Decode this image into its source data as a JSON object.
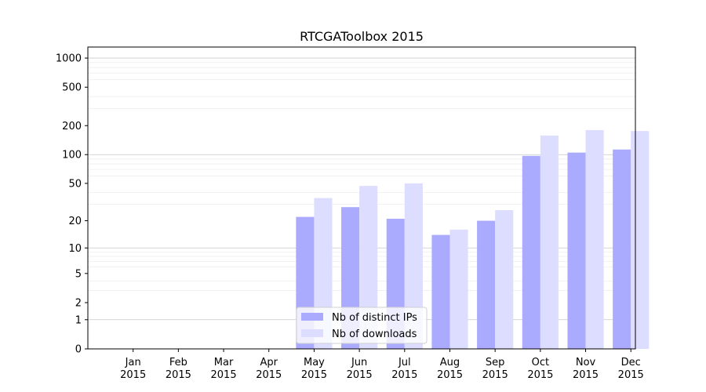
{
  "chart_data": {
    "type": "bar",
    "title": "RTCGAToolbox 2015",
    "xlabel": "",
    "ylabel": "",
    "y_scale": "log(1+y)",
    "ylim": [
      0,
      1300
    ],
    "y_ticks": [
      0,
      1,
      2,
      5,
      10,
      20,
      50,
      100,
      200,
      500,
      1000
    ],
    "y_tick_labels": [
      "0",
      "1",
      "2",
      "5",
      "10",
      "20",
      "50",
      "100",
      "200",
      "500",
      "1000"
    ],
    "categories": [
      [
        "Jan",
        "2015"
      ],
      [
        "Feb",
        "2015"
      ],
      [
        "Mar",
        "2015"
      ],
      [
        "Apr",
        "2015"
      ],
      [
        "May",
        "2015"
      ],
      [
        "Jun",
        "2015"
      ],
      [
        "Jul",
        "2015"
      ],
      [
        "Aug",
        "2015"
      ],
      [
        "Sep",
        "2015"
      ],
      [
        "Oct",
        "2015"
      ],
      [
        "Nov",
        "2015"
      ],
      [
        "Dec",
        "2015"
      ]
    ],
    "series": [
      {
        "name": "Nb of distinct IPs",
        "color": "#aaaaff",
        "values": [
          0,
          0,
          0,
          0,
          22,
          28,
          21,
          14,
          20,
          97,
          105,
          113
        ]
      },
      {
        "name": "Nb of downloads",
        "color": "#ddddff",
        "values": [
          0,
          0,
          0,
          0,
          35,
          47,
          50,
          16,
          26,
          158,
          180,
          176
        ]
      }
    ],
    "grid": true,
    "legend_position": "bottom-center"
  }
}
